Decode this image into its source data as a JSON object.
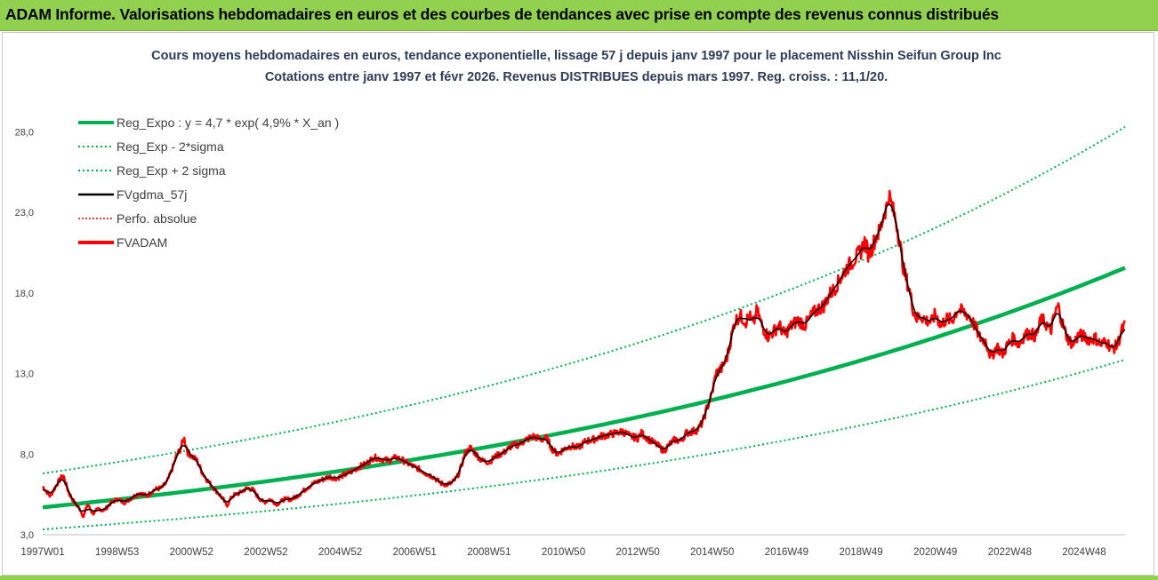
{
  "header": {
    "title": "ADAM Informe. Valorisations hebdomadaires en euros et des courbes de tendances avec prise en compte des revenus connus distribués",
    "background": "#92d050"
  },
  "chart_data": {
    "type": "line",
    "subtitle_line1": "Cours moyens hebdomadaires en euros, tendance exponentielle, lissage 57 j depuis janv 1997 pour le placement Nisshin Seifun Group Inc",
    "subtitle_line2": "Cotations entre janv 1997 et févr 2026. Revenus DISTRIBUES depuis mars 1997. Reg. croiss. : 11,1/20.",
    "xlabel": "",
    "ylabel": "",
    "x_start_year": 1997,
    "x_end_year": 2026.1,
    "ylim": [
      3.0,
      30.0
    ],
    "yticks": [
      3.0,
      8.0,
      13.0,
      18.0,
      23.0,
      28.0
    ],
    "ytick_labels": [
      "3,0",
      "8,0",
      "13,0",
      "18,0",
      "23,0",
      "28,0"
    ],
    "xticks": [
      {
        "label": "1997W01",
        "year": 1997.0
      },
      {
        "label": "1998W53",
        "year": 1999.0
      },
      {
        "label": "2000W52",
        "year": 2001.0
      },
      {
        "label": "2002W52",
        "year": 2003.0
      },
      {
        "label": "2004W52",
        "year": 2005.0
      },
      {
        "label": "2006W51",
        "year": 2007.0
      },
      {
        "label": "2008W51",
        "year": 2009.0
      },
      {
        "label": "2010W50",
        "year": 2011.0
      },
      {
        "label": "2012W50",
        "year": 2013.0
      },
      {
        "label": "2014W50",
        "year": 2015.0
      },
      {
        "label": "2016W49",
        "year": 2017.0
      },
      {
        "label": "2018W49",
        "year": 2019.0
      },
      {
        "label": "2020W49",
        "year": 2021.0
      },
      {
        "label": "2022W48",
        "year": 2023.0
      },
      {
        "label": "2024W48",
        "year": 2025.0
      }
    ],
    "grid": false,
    "legend_position": "top-left",
    "series": [
      {
        "name": "Reg_Expo : y = 4,7 * exp( 4,9% *  X_an )",
        "color": "#00b050",
        "style": "solid-thick",
        "kind": "exp",
        "a": 4.7,
        "rate": 0.049
      },
      {
        "name": "Reg_Exp - 2*sigma",
        "color": "#00b050",
        "style": "dotted",
        "kind": "exp",
        "a": 3.33,
        "rate": 0.049
      },
      {
        "name": "Reg_Exp + 2 sigma",
        "color": "#00b050",
        "style": "dotted",
        "kind": "exp",
        "a": 6.8,
        "rate": 0.049
      },
      {
        "name": "FVgdma_57j",
        "color": "#000000",
        "style": "solid",
        "kind": "smooth"
      },
      {
        "name": "Perfo. absolue",
        "color": "#e00000",
        "style": "dotted",
        "kind": "none"
      },
      {
        "name": "FVADAM",
        "color": "#ff0000",
        "style": "solid-thick",
        "kind": "price",
        "points": [
          [
            1997.0,
            6.0
          ],
          [
            1997.2,
            5.4
          ],
          [
            1997.4,
            6.2
          ],
          [
            1997.55,
            6.7
          ],
          [
            1997.7,
            5.6
          ],
          [
            1997.85,
            5.0
          ],
          [
            1998.0,
            4.6
          ],
          [
            1998.1,
            4.1
          ],
          [
            1998.2,
            4.9
          ],
          [
            1998.35,
            4.3
          ],
          [
            1998.5,
            4.6
          ],
          [
            1998.65,
            4.5
          ],
          [
            1998.8,
            4.9
          ],
          [
            1999.0,
            5.2
          ],
          [
            1999.2,
            5.0
          ],
          [
            1999.4,
            5.3
          ],
          [
            1999.6,
            5.6
          ],
          [
            1999.8,
            5.4
          ],
          [
            2000.0,
            5.8
          ],
          [
            2000.2,
            5.9
          ],
          [
            2000.35,
            6.3
          ],
          [
            2000.5,
            7.2
          ],
          [
            2000.6,
            7.9
          ],
          [
            2000.7,
            8.3
          ],
          [
            2000.8,
            9.0
          ],
          [
            2000.9,
            8.1
          ],
          [
            2001.0,
            7.9
          ],
          [
            2001.15,
            7.6
          ],
          [
            2001.3,
            6.8
          ],
          [
            2001.45,
            6.3
          ],
          [
            2001.6,
            5.9
          ],
          [
            2001.75,
            5.5
          ],
          [
            2001.85,
            5.2
          ],
          [
            2001.95,
            4.8
          ],
          [
            2002.1,
            5.4
          ],
          [
            2002.3,
            5.6
          ],
          [
            2002.5,
            5.9
          ],
          [
            2002.65,
            5.8
          ],
          [
            2002.8,
            5.3
          ],
          [
            2002.95,
            5.0
          ],
          [
            2003.1,
            5.2
          ],
          [
            2003.3,
            4.9
          ],
          [
            2003.5,
            5.2
          ],
          [
            2003.7,
            5.2
          ],
          [
            2003.9,
            5.5
          ],
          [
            2004.1,
            5.9
          ],
          [
            2004.3,
            6.2
          ],
          [
            2004.5,
            6.4
          ],
          [
            2004.7,
            6.6
          ],
          [
            2004.9,
            6.5
          ],
          [
            2005.1,
            6.7
          ],
          [
            2005.3,
            6.9
          ],
          [
            2005.5,
            7.2
          ],
          [
            2005.7,
            7.4
          ],
          [
            2005.9,
            7.8
          ],
          [
            2006.1,
            7.7
          ],
          [
            2006.3,
            7.6
          ],
          [
            2006.5,
            7.8
          ],
          [
            2006.7,
            7.6
          ],
          [
            2006.9,
            7.3
          ],
          [
            2007.1,
            7.1
          ],
          [
            2007.3,
            6.8
          ],
          [
            2007.5,
            6.6
          ],
          [
            2007.7,
            6.2
          ],
          [
            2007.85,
            6.1
          ],
          [
            2008.0,
            6.2
          ],
          [
            2008.15,
            6.6
          ],
          [
            2008.25,
            7.2
          ],
          [
            2008.35,
            8.0
          ],
          [
            2008.5,
            8.4
          ],
          [
            2008.65,
            8.0
          ],
          [
            2008.8,
            7.6
          ],
          [
            2009.0,
            7.5
          ],
          [
            2009.2,
            7.9
          ],
          [
            2009.4,
            8.1
          ],
          [
            2009.6,
            8.5
          ],
          [
            2009.8,
            8.6
          ],
          [
            2010.0,
            8.9
          ],
          [
            2010.2,
            9.1
          ],
          [
            2010.4,
            8.9
          ],
          [
            2010.55,
            9.0
          ],
          [
            2010.7,
            8.3
          ],
          [
            2010.85,
            8.0
          ],
          [
            2011.0,
            8.3
          ],
          [
            2011.2,
            8.5
          ],
          [
            2011.4,
            8.4
          ],
          [
            2011.6,
            8.8
          ],
          [
            2011.8,
            8.9
          ],
          [
            2012.0,
            9.1
          ],
          [
            2012.2,
            9.2
          ],
          [
            2012.4,
            9.3
          ],
          [
            2012.6,
            9.4
          ],
          [
            2012.8,
            9.1
          ],
          [
            2013.0,
            9.0
          ],
          [
            2013.1,
            9.3
          ],
          [
            2013.3,
            8.9
          ],
          [
            2013.5,
            8.6
          ],
          [
            2013.7,
            8.2
          ],
          [
            2013.85,
            8.6
          ],
          [
            2014.0,
            8.9
          ],
          [
            2014.15,
            8.8
          ],
          [
            2014.3,
            9.3
          ],
          [
            2014.45,
            9.4
          ],
          [
            2014.6,
            9.5
          ],
          [
            2014.75,
            10.0
          ],
          [
            2014.85,
            10.8
          ],
          [
            2015.0,
            11.8
          ],
          [
            2015.1,
            13.0
          ],
          [
            2015.25,
            13.3
          ],
          [
            2015.4,
            14.0
          ],
          [
            2015.5,
            15.1
          ],
          [
            2015.6,
            16.2
          ],
          [
            2015.75,
            16.6
          ],
          [
            2015.9,
            16.2
          ],
          [
            2016.0,
            16.6
          ],
          [
            2016.1,
            16.0
          ],
          [
            2016.2,
            16.9
          ],
          [
            2016.35,
            15.9
          ],
          [
            2016.5,
            15.3
          ],
          [
            2016.65,
            15.6
          ],
          [
            2016.8,
            16.0
          ],
          [
            2016.95,
            15.4
          ],
          [
            2017.1,
            15.9
          ],
          [
            2017.3,
            16.3
          ],
          [
            2017.5,
            16.0
          ],
          [
            2017.7,
            16.7
          ],
          [
            2017.85,
            17.0
          ],
          [
            2018.0,
            17.2
          ],
          [
            2018.15,
            17.9
          ],
          [
            2018.3,
            18.3
          ],
          [
            2018.45,
            18.9
          ],
          [
            2018.6,
            19.5
          ],
          [
            2018.75,
            19.9
          ],
          [
            2018.9,
            20.3
          ],
          [
            2019.0,
            20.6
          ],
          [
            2019.1,
            21.2
          ],
          [
            2019.2,
            20.4
          ],
          [
            2019.3,
            20.8
          ],
          [
            2019.4,
            21.5
          ],
          [
            2019.5,
            21.8
          ],
          [
            2019.55,
            22.2
          ],
          [
            2019.6,
            22.8
          ],
          [
            2019.7,
            23.4
          ],
          [
            2019.75,
            24.1
          ],
          [
            2019.85,
            23.2
          ],
          [
            2019.95,
            22.4
          ],
          [
            2020.05,
            21.0
          ],
          [
            2020.15,
            19.4
          ],
          [
            2020.3,
            18.2
          ],
          [
            2020.4,
            17.0
          ],
          [
            2020.5,
            16.4
          ],
          [
            2020.6,
            16.6
          ],
          [
            2020.75,
            16.3
          ],
          [
            2020.9,
            16.2
          ],
          [
            2021.0,
            16.7
          ],
          [
            2021.15,
            16.0
          ],
          [
            2021.3,
            16.4
          ],
          [
            2021.45,
            16.3
          ],
          [
            2021.6,
            17.0
          ],
          [
            2021.75,
            16.8
          ],
          [
            2021.9,
            16.6
          ],
          [
            2022.05,
            16.0
          ],
          [
            2022.2,
            15.2
          ],
          [
            2022.35,
            15.0
          ],
          [
            2022.5,
            14.0
          ],
          [
            2022.65,
            14.7
          ],
          [
            2022.8,
            14.2
          ],
          [
            2022.95,
            14.8
          ],
          [
            2023.1,
            15.2
          ],
          [
            2023.25,
            14.8
          ],
          [
            2023.4,
            15.4
          ],
          [
            2023.55,
            15.5
          ],
          [
            2023.7,
            15.3
          ],
          [
            2023.85,
            16.4
          ],
          [
            2024.0,
            16.0
          ],
          [
            2024.1,
            15.6
          ],
          [
            2024.2,
            16.6
          ],
          [
            2024.3,
            17.2
          ],
          [
            2024.4,
            16.2
          ],
          [
            2024.55,
            15.2
          ],
          [
            2024.7,
            14.8
          ],
          [
            2024.85,
            15.4
          ],
          [
            2025.0,
            15.3
          ],
          [
            2025.15,
            15.1
          ],
          [
            2025.3,
            15.2
          ],
          [
            2025.45,
            14.8
          ],
          [
            2025.6,
            15.0
          ],
          [
            2025.75,
            14.5
          ],
          [
            2025.9,
            14.8
          ],
          [
            2026.0,
            15.6
          ],
          [
            2026.1,
            16.0
          ]
        ]
      }
    ]
  }
}
